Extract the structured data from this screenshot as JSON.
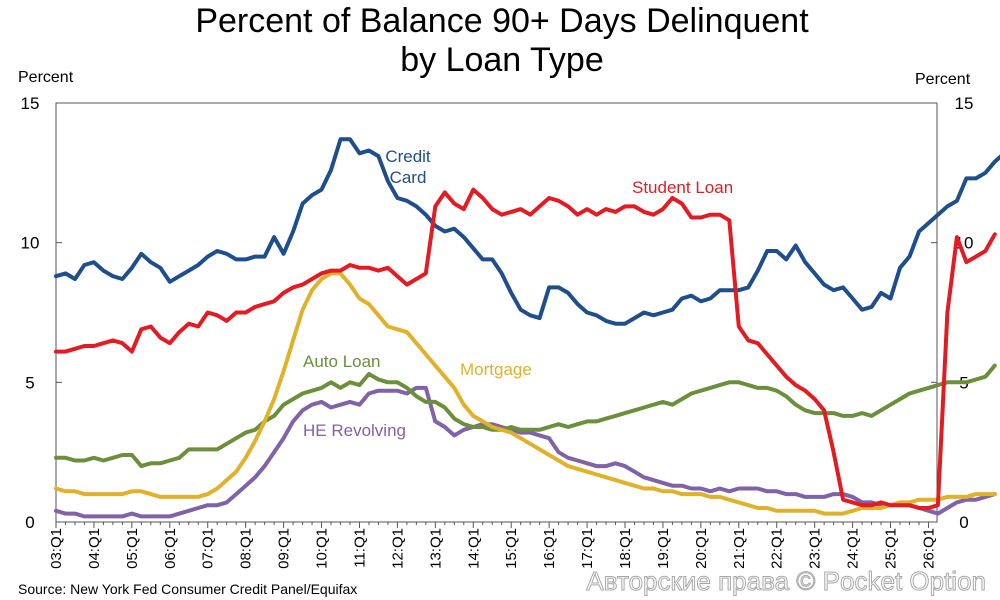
{
  "chart_data": {
    "type": "line",
    "title_line1": "Percent of Balance 90+ Days Delinquent",
    "title_line2": "by Loan Type",
    "y_unit_left": "Percent",
    "y_unit_right": "Percent",
    "ylim": [
      0,
      15
    ],
    "y_ticks": [
      0,
      5,
      10,
      15
    ],
    "x_ticks": [
      "03:Q1",
      "04:Q1",
      "05:Q1",
      "06:Q1",
      "07:Q1",
      "08:Q1",
      "09:Q1",
      "10:Q1",
      "11:Q1",
      "12:Q1",
      "13:Q1",
      "14:Q1",
      "15:Q1",
      "16:Q1",
      "17:Q1",
      "18:Q1",
      "19:Q1",
      "20:Q1",
      "21:Q1",
      "22:Q1",
      "23:Q1",
      "24:Q1",
      "25:Q1",
      "26:Q1"
    ],
    "x_start_year": 2003,
    "grid": false,
    "legend": "inline labels",
    "source": "Source: New York Fed Consumer Credit Panel/Equifax",
    "watermark": "Авторские права © Pocket Option",
    "series": [
      {
        "name": "Credit Card",
        "label_lines": [
          "Credit",
          "Card"
        ],
        "color": "#1f4e8c",
        "values": [
          8.8,
          8.9,
          8.7,
          9.2,
          9.3,
          9.0,
          8.8,
          8.7,
          9.1,
          9.6,
          9.3,
          9.1,
          8.6,
          8.8,
          9.0,
          9.2,
          9.5,
          9.7,
          9.6,
          9.4,
          9.4,
          9.5,
          9.5,
          10.2,
          9.6,
          10.4,
          11.4,
          11.7,
          11.9,
          12.6,
          13.7,
          13.7,
          13.2,
          13.3,
          13.1,
          12.2,
          11.6,
          11.5,
          11.3,
          11.0,
          10.6,
          10.4,
          10.5,
          10.2,
          9.8,
          9.4,
          9.4,
          8.9,
          8.2,
          7.6,
          7.4,
          7.3,
          8.4,
          8.4,
          8.2,
          7.8,
          7.5,
          7.4,
          7.2,
          7.1,
          7.1,
          7.3,
          7.5,
          7.4,
          7.5,
          7.6,
          8.0,
          8.1,
          7.9,
          8.0,
          8.3,
          8.3,
          8.3,
          8.4,
          9.0,
          9.7,
          9.7,
          9.4,
          9.9,
          9.3,
          8.9,
          8.5,
          8.3,
          8.4,
          8.0,
          7.6,
          7.7,
          8.2,
          8.0,
          9.1,
          9.5,
          10.4,
          10.7,
          11.0,
          11.3,
          11.5,
          12.3,
          12.3,
          12.5,
          12.9,
          13.2
        ]
      },
      {
        "name": "Student Loan",
        "color": "#e31b23",
        "values": [
          6.1,
          6.1,
          6.2,
          6.3,
          6.3,
          6.4,
          6.5,
          6.4,
          6.1,
          6.9,
          7.0,
          6.6,
          6.4,
          6.8,
          7.1,
          7.0,
          7.5,
          7.4,
          7.2,
          7.5,
          7.5,
          7.7,
          7.8,
          7.9,
          8.2,
          8.4,
          8.5,
          8.7,
          8.9,
          9.0,
          9.0,
          9.2,
          9.1,
          9.1,
          9.0,
          9.1,
          8.8,
          8.5,
          8.7,
          8.9,
          11.3,
          11.8,
          11.4,
          11.2,
          11.9,
          11.6,
          11.2,
          11.0,
          11.1,
          11.2,
          11.0,
          11.3,
          11.6,
          11.5,
          11.3,
          11.0,
          11.2,
          11.0,
          11.2,
          11.1,
          11.3,
          11.3,
          11.1,
          11.0,
          11.2,
          11.6,
          11.4,
          10.9,
          10.9,
          11.0,
          11.0,
          10.8,
          7.0,
          6.5,
          6.4,
          6.0,
          5.6,
          5.2,
          4.9,
          4.7,
          4.4,
          4.0,
          2.5,
          0.8,
          0.7,
          0.6,
          0.6,
          0.7,
          0.6,
          0.6,
          0.6,
          0.5,
          0.5,
          0.6,
          7.5,
          10.2,
          9.3,
          9.5,
          9.7,
          10.3
        ]
      },
      {
        "name": "Auto Loan",
        "color": "#6b8f3a",
        "values": [
          2.3,
          2.3,
          2.2,
          2.2,
          2.3,
          2.2,
          2.3,
          2.4,
          2.4,
          2.0,
          2.1,
          2.1,
          2.2,
          2.3,
          2.6,
          2.6,
          2.6,
          2.6,
          2.8,
          3.0,
          3.2,
          3.3,
          3.6,
          3.8,
          4.2,
          4.4,
          4.6,
          4.7,
          4.8,
          5.0,
          4.8,
          5.0,
          4.9,
          5.3,
          5.1,
          5.0,
          5.0,
          4.8,
          4.5,
          4.3,
          4.3,
          4.1,
          3.7,
          3.5,
          3.4,
          3.4,
          3.3,
          3.3,
          3.4,
          3.3,
          3.3,
          3.3,
          3.4,
          3.5,
          3.4,
          3.5,
          3.6,
          3.6,
          3.7,
          3.8,
          3.9,
          4.0,
          4.1,
          4.2,
          4.3,
          4.2,
          4.4,
          4.6,
          4.7,
          4.8,
          4.9,
          5.0,
          5.0,
          4.9,
          4.8,
          4.8,
          4.7,
          4.5,
          4.2,
          4.0,
          3.9,
          3.9,
          3.9,
          3.8,
          3.8,
          3.9,
          3.8,
          4.0,
          4.2,
          4.4,
          4.6,
          4.7,
          4.8,
          4.9,
          5.0,
          5.0,
          5.0,
          5.1,
          5.2,
          5.6
        ]
      },
      {
        "name": "Mortgage",
        "color": "#e0b12a",
        "values": [
          1.2,
          1.1,
          1.1,
          1.0,
          1.0,
          1.0,
          1.0,
          1.0,
          1.1,
          1.1,
          1.0,
          0.9,
          0.9,
          0.9,
          0.9,
          0.9,
          1.0,
          1.2,
          1.5,
          1.8,
          2.3,
          2.9,
          3.6,
          4.4,
          5.4,
          6.5,
          7.6,
          8.3,
          8.7,
          8.9,
          8.9,
          8.5,
          8.0,
          7.8,
          7.4,
          7.0,
          6.9,
          6.8,
          6.4,
          6.0,
          5.6,
          5.2,
          4.8,
          4.2,
          3.8,
          3.6,
          3.4,
          3.3,
          3.2,
          3.0,
          2.8,
          2.6,
          2.4,
          2.2,
          2.0,
          1.9,
          1.8,
          1.7,
          1.6,
          1.5,
          1.4,
          1.3,
          1.2,
          1.2,
          1.1,
          1.1,
          1.0,
          1.0,
          1.0,
          0.9,
          0.9,
          0.8,
          0.7,
          0.6,
          0.5,
          0.5,
          0.4,
          0.4,
          0.4,
          0.4,
          0.4,
          0.3,
          0.3,
          0.3,
          0.4,
          0.5,
          0.5,
          0.5,
          0.6,
          0.7,
          0.7,
          0.8,
          0.8,
          0.8,
          0.9,
          0.9,
          0.9,
          1.0,
          1.0,
          1.0
        ]
      },
      {
        "name": "HE Revolving",
        "color": "#8062a8",
        "values": [
          0.4,
          0.3,
          0.3,
          0.2,
          0.2,
          0.2,
          0.2,
          0.2,
          0.3,
          0.2,
          0.2,
          0.2,
          0.2,
          0.3,
          0.4,
          0.5,
          0.6,
          0.6,
          0.7,
          1.0,
          1.3,
          1.6,
          2.0,
          2.5,
          3.0,
          3.6,
          4.0,
          4.2,
          4.3,
          4.1,
          4.2,
          4.3,
          4.2,
          4.6,
          4.7,
          4.7,
          4.7,
          4.6,
          4.8,
          4.8,
          3.6,
          3.4,
          3.1,
          3.3,
          3.4,
          3.5,
          3.5,
          3.4,
          3.3,
          3.2,
          3.2,
          3.1,
          3.0,
          2.5,
          2.3,
          2.2,
          2.1,
          2.0,
          2.0,
          2.1,
          2.0,
          1.8,
          1.6,
          1.5,
          1.4,
          1.3,
          1.3,
          1.2,
          1.2,
          1.1,
          1.2,
          1.1,
          1.2,
          1.2,
          1.2,
          1.1,
          1.1,
          1.0,
          1.0,
          0.9,
          0.9,
          0.9,
          1.0,
          1.0,
          0.9,
          0.7,
          0.7,
          0.6,
          0.6,
          0.6,
          0.6,
          0.5,
          0.4,
          0.3,
          0.5,
          0.7,
          0.8,
          0.8,
          0.9,
          1.0
        ]
      }
    ]
  }
}
